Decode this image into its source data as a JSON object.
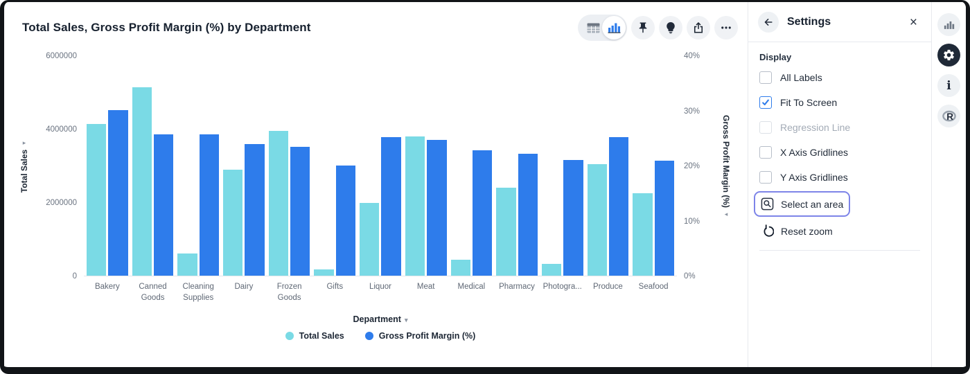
{
  "chart_data": {
    "type": "bar",
    "title": "Total Sales, Gross Profit Margin (%) by Department",
    "categories": [
      "Bakery",
      "Canned Goods",
      "Cleaning Supplies",
      "Dairy",
      "Frozen Goods",
      "Gifts",
      "Liquor",
      "Meat",
      "Medical",
      "Pharmacy",
      "Photogra...",
      "Produce",
      "Seafood"
    ],
    "series": [
      {
        "name": "Total Sales",
        "axis": "left",
        "color": "#7ADAE5",
        "values": [
          4150000,
          5150000,
          610000,
          2900000,
          3950000,
          180000,
          1980000,
          3800000,
          430000,
          2400000,
          320000,
          3050000,
          2260000
        ]
      },
      {
        "name": "Gross Profit Margin (%)",
        "axis": "right",
        "color": "#2E7CEB",
        "values": [
          30.1,
          25.8,
          25.7,
          24.0,
          23.5,
          20.1,
          25.3,
          24.7,
          22.8,
          22.2,
          21.1,
          25.2,
          20.9
        ]
      }
    ],
    "left_axis": {
      "label": "Total Sales",
      "max": 6000000,
      "arrow": "▸",
      "ticks": [
        {
          "label": "0",
          "value": 0
        },
        {
          "label": "2000000",
          "value": 2000000
        },
        {
          "label": "4000000",
          "value": 4000000
        },
        {
          "label": "6000000",
          "value": 6000000
        }
      ]
    },
    "right_axis": {
      "label": "Gross Profit Margin (%)",
      "max": 40,
      "arrow": "◂",
      "ticks": [
        {
          "label": "0%",
          "value": 0
        },
        {
          "label": "10%",
          "value": 10
        },
        {
          "label": "20%",
          "value": 20
        },
        {
          "label": "30%",
          "value": 30
        },
        {
          "label": "40%",
          "value": 40
        }
      ]
    },
    "xlabel": "Department",
    "xlabel_arrow": "▾",
    "gridlines": false,
    "legend_position": "bottom-center"
  },
  "toolbar": {
    "view_toggle": {
      "options": [
        "table-view",
        "chart-view"
      ],
      "selected": "chart-view"
    },
    "buttons": [
      {
        "icon": "pin-icon"
      },
      {
        "icon": "lightbulb-icon"
      },
      {
        "icon": "share-icon"
      },
      {
        "icon": "ellipsis-icon"
      }
    ]
  },
  "settings_panel": {
    "title": "Settings",
    "back_icon": "arrow-left-icon",
    "close_icon": "×",
    "section": "Display",
    "checkboxes": [
      {
        "label": "All Labels",
        "checked": false,
        "disabled": false
      },
      {
        "label": "Fit To Screen",
        "checked": true,
        "disabled": false
      },
      {
        "label": "Regression Line",
        "checked": false,
        "disabled": true
      },
      {
        "label": "X Axis Gridlines",
        "checked": false,
        "disabled": false
      },
      {
        "label": "Y Axis Gridlines",
        "checked": false,
        "disabled": false
      }
    ],
    "actions": [
      {
        "label": "Select an area",
        "icon": "select-area-icon",
        "focused": true
      },
      {
        "label": "Reset zoom",
        "icon": "reset-zoom-icon",
        "focused": false
      }
    ]
  },
  "right_rail": {
    "icons": [
      {
        "icon": "bar-chart-icon",
        "active": false
      },
      {
        "icon": "gear-icon",
        "active": true
      },
      {
        "icon": "info-icon",
        "active": false
      },
      {
        "icon": "r-logo-icon",
        "active": false
      }
    ],
    "info_glyph": "i",
    "r_glyph": "R"
  },
  "colors": {
    "series_cyan": "#7ADAE5",
    "series_blue": "#2E7CEB",
    "focus_ring": "#7D84E8",
    "active_rail_bg": "#1F2937",
    "title_text": "#17212F"
  }
}
